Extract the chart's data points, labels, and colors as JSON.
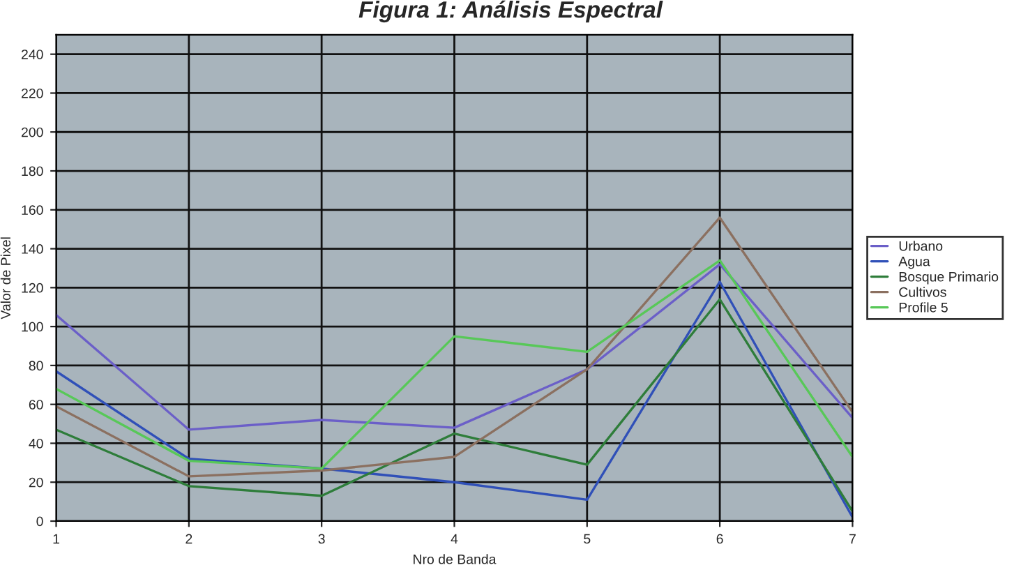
{
  "chart_data": {
    "type": "line",
    "title": "Figura 1: Análisis Espectral",
    "xlabel": "Nro de Banda",
    "ylabel": "Valor de Pixel",
    "x": [
      1,
      2,
      3,
      4,
      5,
      6,
      7
    ],
    "xlim": [
      1,
      7
    ],
    "xticks": [
      1,
      2,
      3,
      4,
      5,
      6,
      7
    ],
    "ylim": [
      0,
      250
    ],
    "yticks": [
      0,
      20,
      40,
      60,
      80,
      100,
      120,
      140,
      160,
      180,
      200,
      220,
      240
    ],
    "grid": true,
    "legend": "right",
    "marker": "none",
    "line_style": "solid",
    "series": [
      {
        "name": "Urbano",
        "color": "#6b5fc8",
        "values": [
          106,
          47,
          52,
          48,
          78,
          132,
          53
        ]
      },
      {
        "name": "Agua",
        "color": "#3050b8",
        "values": [
          77,
          32,
          27,
          20,
          11,
          123,
          2
        ]
      },
      {
        "name": "Bosque Primario",
        "color": "#2e7d3a",
        "values": [
          47,
          18,
          13,
          45,
          29,
          114,
          5
        ]
      },
      {
        "name": "Cultivos",
        "color": "#8b7060",
        "values": [
          59,
          23,
          26,
          33,
          78,
          156,
          56
        ]
      },
      {
        "name": "Profile 5",
        "color": "#58c858",
        "values": [
          68,
          31,
          27,
          95,
          87,
          134,
          33
        ]
      }
    ]
  }
}
